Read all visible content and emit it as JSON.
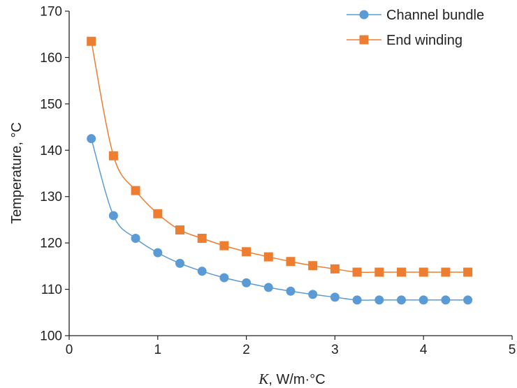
{
  "chart_data": {
    "type": "line",
    "title": "",
    "xlabel_symbol": "K",
    "xlabel_unit": ", W/m·°C",
    "ylabel": "Temperature, °C",
    "xlim": [
      0,
      5
    ],
    "ylim": [
      100,
      170
    ],
    "xticks": [
      0,
      1,
      2,
      3,
      4,
      5
    ],
    "yticks": [
      100,
      110,
      120,
      130,
      140,
      150,
      160,
      170
    ],
    "grid": false,
    "legend_position": "top-right",
    "x": [
      0.25,
      0.5,
      0.75,
      1,
      1.25,
      1.5,
      1.75,
      2,
      2.25,
      2.5,
      2.75,
      3,
      3.25,
      3.5,
      3.75,
      4,
      4.25,
      4.5
    ],
    "series": [
      {
        "name": "Channel bundle",
        "color": "#5B9BD5",
        "marker": "circle",
        "values": [
          142.5,
          125.9,
          121.0,
          117.9,
          115.6,
          113.9,
          112.5,
          111.4,
          110.4,
          109.6,
          108.9,
          108.3,
          107.7,
          107.7,
          107.7,
          107.7,
          107.7,
          107.7
        ]
      },
      {
        "name": "End winding",
        "color": "#ED7D31",
        "marker": "square",
        "values": [
          163.5,
          138.8,
          131.3,
          126.3,
          122.8,
          121.0,
          119.4,
          118.1,
          117.0,
          116.0,
          115.1,
          114.4,
          113.7,
          113.7,
          113.7,
          113.7,
          113.7,
          113.7
        ]
      }
    ]
  }
}
